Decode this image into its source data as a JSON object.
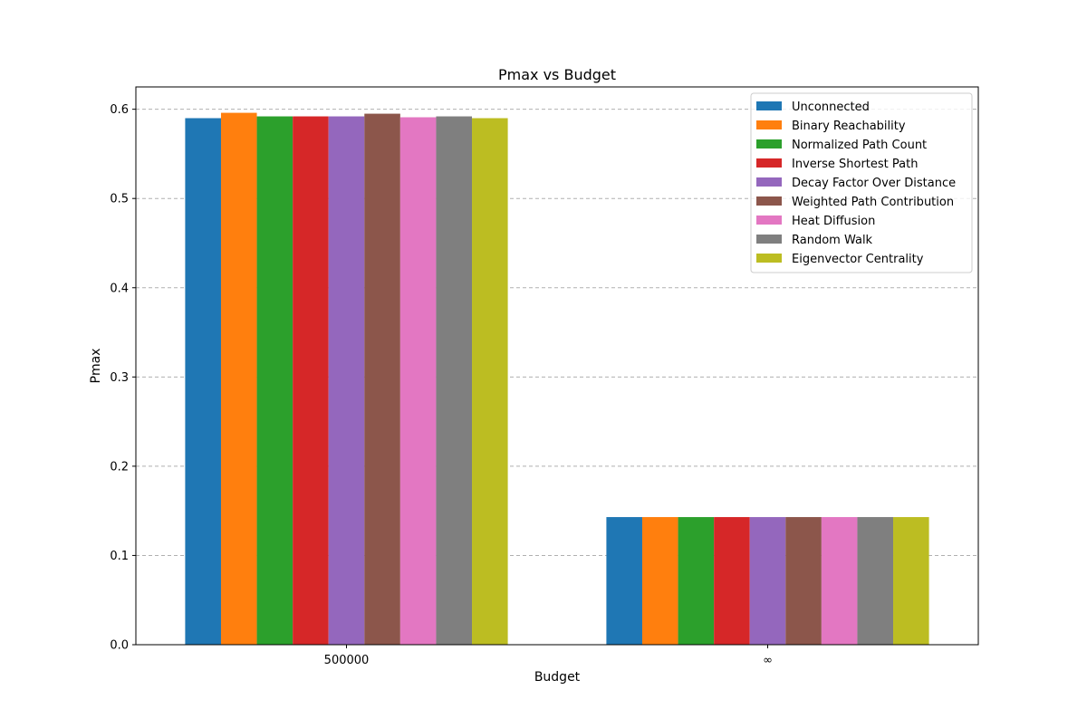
{
  "chart_data": {
    "type": "bar",
    "title": "Pmax vs Budget",
    "xlabel": "Budget",
    "ylabel": "Pmax",
    "categories": [
      "500000",
      "∞"
    ],
    "ylim": [
      0,
      0.625
    ],
    "yticks": [
      "0.0",
      "0.1",
      "0.2",
      "0.3",
      "0.4",
      "0.5",
      "0.6"
    ],
    "ytick_values": [
      0,
      0.1,
      0.2,
      0.3,
      0.4,
      0.5,
      0.6
    ],
    "grid": "y-dashed",
    "legend_position": "top-right",
    "series": [
      {
        "name": "Unconnected",
        "color": "#1f77b4",
        "values": [
          0.59,
          0.143
        ]
      },
      {
        "name": "Binary Reachability",
        "color": "#ff7f0e",
        "values": [
          0.596,
          0.143
        ]
      },
      {
        "name": "Normalized Path Count",
        "color": "#2ca02c",
        "values": [
          0.592,
          0.143
        ]
      },
      {
        "name": "Inverse Shortest Path",
        "color": "#d62728",
        "values": [
          0.592,
          0.143
        ]
      },
      {
        "name": "Decay Factor Over Distance",
        "color": "#9467bd",
        "values": [
          0.592,
          0.143
        ]
      },
      {
        "name": "Weighted Path Contribution",
        "color": "#8c564b",
        "values": [
          0.595,
          0.143
        ]
      },
      {
        "name": "Heat Diffusion",
        "color": "#e377c2",
        "values": [
          0.591,
          0.143
        ]
      },
      {
        "name": "Random Walk",
        "color": "#7f7f7f",
        "values": [
          0.592,
          0.143
        ]
      },
      {
        "name": "Eigenvector Centrality",
        "color": "#bcbd22",
        "values": [
          0.59,
          0.143
        ]
      }
    ]
  }
}
